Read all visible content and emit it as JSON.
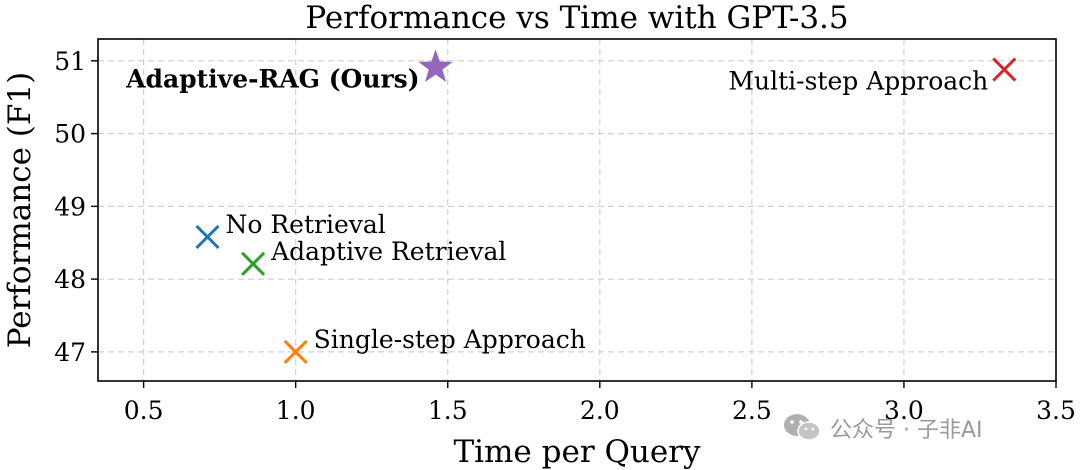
{
  "chart_data": {
    "type": "scatter",
    "title": "Performance vs Time with GPT-3.5",
    "xlabel": "Time per Query",
    "ylabel": "Performance (F1)",
    "xlim": [
      0.35,
      3.5
    ],
    "ylim": [
      46.6,
      51.3
    ],
    "xticks": [
      0.5,
      1.0,
      1.5,
      2.0,
      2.5,
      3.0,
      3.5
    ],
    "xtick_labels": [
      "0.5",
      "1.0",
      "1.5",
      "2.0",
      "2.5",
      "3.0",
      "3.5"
    ],
    "yticks": [
      47,
      48,
      49,
      50,
      51
    ],
    "ytick_labels": [
      "47",
      "48",
      "49",
      "50",
      "51"
    ],
    "grid": true,
    "points": [
      {
        "label": "No Retrieval",
        "x": 0.71,
        "y": 48.58,
        "marker": "x",
        "color": "#1f77b4",
        "label_side": "right",
        "bold": false
      },
      {
        "label": "Adaptive Retrieval",
        "x": 0.86,
        "y": 48.21,
        "marker": "x",
        "color": "#2ca02c",
        "label_side": "right",
        "bold": false
      },
      {
        "label": "Single-step Approach",
        "x": 1.0,
        "y": 47.0,
        "marker": "x",
        "color": "#ff7f0e",
        "label_side": "right",
        "bold": false
      },
      {
        "label": "Multi-step Approach",
        "x": 3.33,
        "y": 50.88,
        "marker": "x",
        "color": "#d62728",
        "label_side": "left",
        "bold": false
      },
      {
        "label": "Adaptive-RAG (Ours)",
        "x": 1.46,
        "y": 50.91,
        "marker": "star",
        "color": "#9467bd",
        "label_side": "left",
        "bold": true
      }
    ]
  },
  "watermark": {
    "icon": "wechat-icon",
    "text": "公众号 · 子非AI"
  }
}
